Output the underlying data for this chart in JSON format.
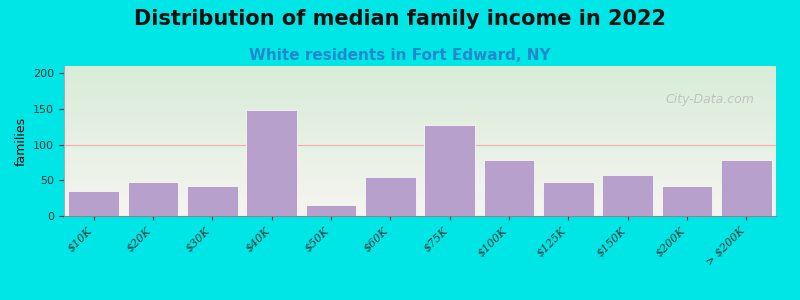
{
  "title": "Distribution of median family income in 2022",
  "subtitle": "White residents in Fort Edward, NY",
  "ylabel": "families",
  "categories": [
    "$10K",
    "$20K",
    "$30K",
    "$40K",
    "$50K",
    "$60K",
    "$75K",
    "$100K",
    "$125K",
    "$150K",
    "$200K",
    "> $200K"
  ],
  "values": [
    35,
    47,
    42,
    148,
    15,
    54,
    127,
    78,
    48,
    58,
    42,
    78
  ],
  "bar_color": "#b8a0cc",
  "bar_edgecolor": "#ffffff",
  "ylim": [
    0,
    210
  ],
  "yticks": [
    0,
    50,
    100,
    150,
    200
  ],
  "background_outer": "#00e5e5",
  "plot_bg_top": "#d8ecd8",
  "plot_bg_bottom": "#f5f5f0",
  "title_fontsize": 15,
  "subtitle_fontsize": 11,
  "subtitle_color": "#2288cc",
  "watermark": "City-Data.com",
  "watermark_color": "#aaaaaa"
}
